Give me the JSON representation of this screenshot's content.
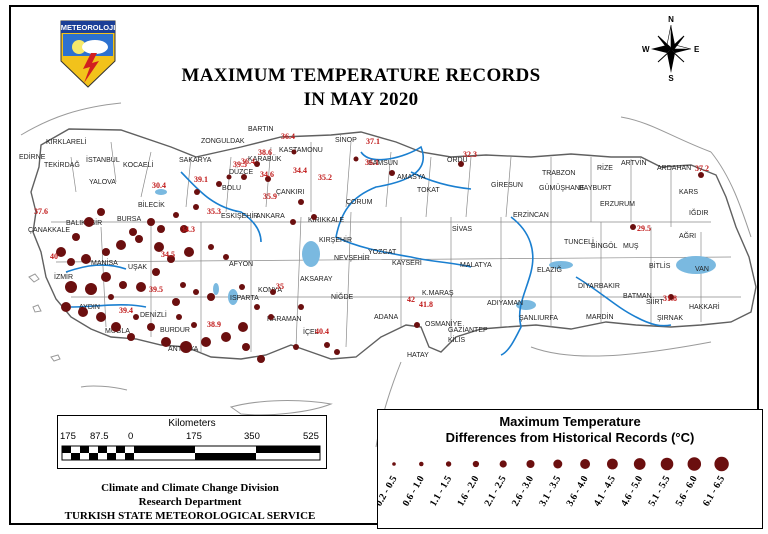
{
  "title_line1": "MAXIMUM TEMPERATURE RECORDS",
  "title_line2": "IN MAY 2020",
  "logo_text": "METEOROLOJI",
  "compass": {
    "n": "N",
    "s": "S",
    "e": "E",
    "w": "W"
  },
  "scale": {
    "title": "Kilometers",
    "ticks": [
      "175",
      "87.5",
      "0",
      "175",
      "350",
      "525"
    ]
  },
  "credits": [
    "Climate and Climate Change Division",
    "Research Department",
    "TURKISH STATE METEOROLOGICAL SERVICE"
  ],
  "legend": {
    "title_line1": "Maximum Temperature",
    "title_line2": "Differences from Historical Records (°C)",
    "classes": [
      "0.2 - 0.5",
      "0.6 - 1.0",
      "1.1 - 1.5",
      "1.6 - 2.0",
      "2.1 - 2.5",
      "2.6 - 3.0",
      "3.1 - 3.5",
      "3.6 - 4.0",
      "4.1 - 4.5",
      "4.6 - 5.0",
      "5.1 - 5.5",
      "5.6 - 6.0",
      "6.1 - 6.5"
    ],
    "dot_color": "#6b0f0f"
  },
  "cities": [
    "KIRKLARELİ",
    "EDİRNE",
    "TEKİRDAĞ",
    "İSTANBUL",
    "KOCAELİ",
    "YALOVA",
    "SAKARYA",
    "ZONGULDAK",
    "BARTIN",
    "KARABÜK",
    "KASTAMONU",
    "SİNOP",
    "SAMSUN",
    "ORDU",
    "ARTVİN",
    "RİZE",
    "TRABZON",
    "GİRESUN",
    "GÜMÜŞHANE",
    "BAYBURT",
    "ARDAHAN",
    "KARS",
    "IĞDIR",
    "AĞRI",
    "ERZURUM",
    "ERZİNCAN",
    "TUNCELİ",
    "BİNGÖL",
    "MUŞ",
    "BİTLİS",
    "VAN",
    "HAKKARİ",
    "ŞIRNAK",
    "SİİRT",
    "BATMAN",
    "MARDİN",
    "DİYARBAKIR",
    "ELAZIĞ",
    "MALATYA",
    "ADIYAMAN",
    "ŞANLIURFA",
    "GAZİANTEP",
    "KİLİS",
    "OSMANİYE",
    "HATAY",
    "ADANA",
    "K.MARAŞ",
    "KAYSERİ",
    "NİĞDE",
    "AKSARAY",
    "NEVŞEHİR",
    "KIRŞEHİR",
    "YOZGAT",
    "SİVAS",
    "TOKAT",
    "AMASYA",
    "ÇORUM",
    "KIRIKKALE",
    "ANKARA",
    "ÇANKIRI",
    "BOLU",
    "DÜZCE",
    "BİLECİK",
    "ESKİŞEHİR",
    "BURSA",
    "BALIKESİR",
    "ÇANAKKALE",
    "MANİSA",
    "İZMİR",
    "UŞAK",
    "AYDIN",
    "DENİZLİ",
    "MUĞLA",
    "BURDUR",
    "ISPARTA",
    "ANTALYA",
    "AFYON",
    "KONYA",
    "KARAMAN",
    "İÇEL"
  ],
  "record_values": [
    "36.4",
    "37.1",
    "38.6",
    "39.5",
    "39.1",
    "34.6",
    "34.4",
    "35.2",
    "35.9",
    "32.3",
    "37.2",
    "29.5",
    "31.8",
    "37.6",
    "35.3",
    "39.4",
    "39.5",
    "38.9",
    "35",
    "40.4",
    "41.8",
    "42",
    "36.1",
    "36.4",
    "40",
    "34.3",
    "34.5",
    "30.4"
  ],
  "colors": {
    "river": "#1a7fd0",
    "lake": "#7ab9e0",
    "dot": "#6b0f0f",
    "value_text": "#c01818"
  }
}
